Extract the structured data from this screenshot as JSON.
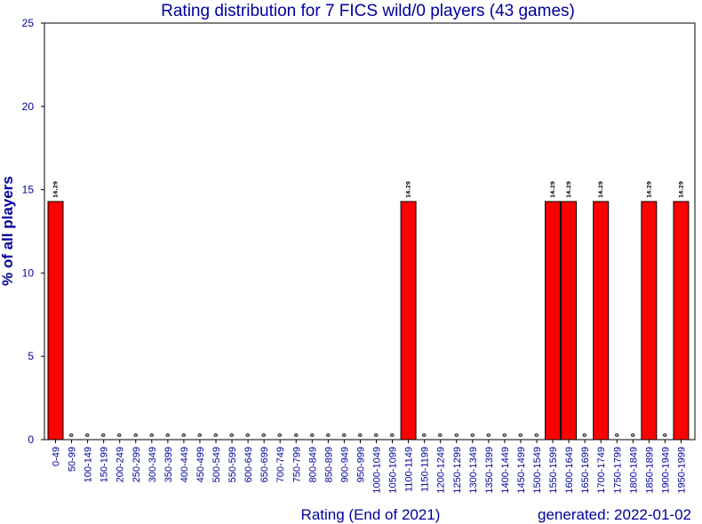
{
  "chart_data": {
    "type": "bar",
    "title": "Rating distribution for 7 FICS wild/0 players (43 games)",
    "xlabel": "Rating (End of 2021)",
    "ylabel": "% of all players",
    "footer": "generated: 2022-01-02",
    "ylim": [
      0,
      25
    ],
    "yticks": [
      0,
      5,
      10,
      15,
      20,
      25
    ],
    "categories": [
      "0-49",
      "50-99",
      "100-149",
      "150-199",
      "200-249",
      "250-299",
      "300-349",
      "350-399",
      "400-449",
      "450-499",
      "500-549",
      "550-599",
      "600-649",
      "650-699",
      "700-749",
      "750-799",
      "800-849",
      "850-899",
      "900-949",
      "950-999",
      "1000-1049",
      "1050-1099",
      "1100-1149",
      "1150-1199",
      "1200-1249",
      "1250-1299",
      "1300-1349",
      "1350-1399",
      "1400-1449",
      "1450-1499",
      "1500-1549",
      "1550-1599",
      "1600-1649",
      "1650-1699",
      "1700-1749",
      "1750-1799",
      "1800-1849",
      "1850-1899",
      "1900-1949",
      "1950-1999"
    ],
    "values": [
      14.29,
      0,
      0,
      0,
      0,
      0,
      0,
      0,
      0,
      0,
      0,
      0,
      0,
      0,
      0,
      0,
      0,
      0,
      0,
      0,
      0,
      0,
      14.29,
      0,
      0,
      0,
      0,
      0,
      0,
      0,
      0,
      14.29,
      14.29,
      0,
      14.29,
      0,
      0,
      14.29,
      0,
      14.29
    ],
    "data_labels": [
      "14.29",
      "0",
      "0",
      "0",
      "0",
      "0",
      "0",
      "0",
      "0",
      "0",
      "0",
      "0",
      "0",
      "0",
      "0",
      "0",
      "0",
      "0",
      "0",
      "0",
      "0",
      "0",
      "14.29",
      "0",
      "0",
      "0",
      "0",
      "0",
      "0",
      "0",
      "0",
      "14.29",
      "14.29",
      "0",
      "14.29",
      "0",
      "0",
      "14.29",
      "0",
      "14.29"
    ],
    "colors": {
      "bar": "#ff0000",
      "bar_stroke": "#000000",
      "text": "#00009b",
      "frame": "#000000"
    },
    "grid": false
  }
}
